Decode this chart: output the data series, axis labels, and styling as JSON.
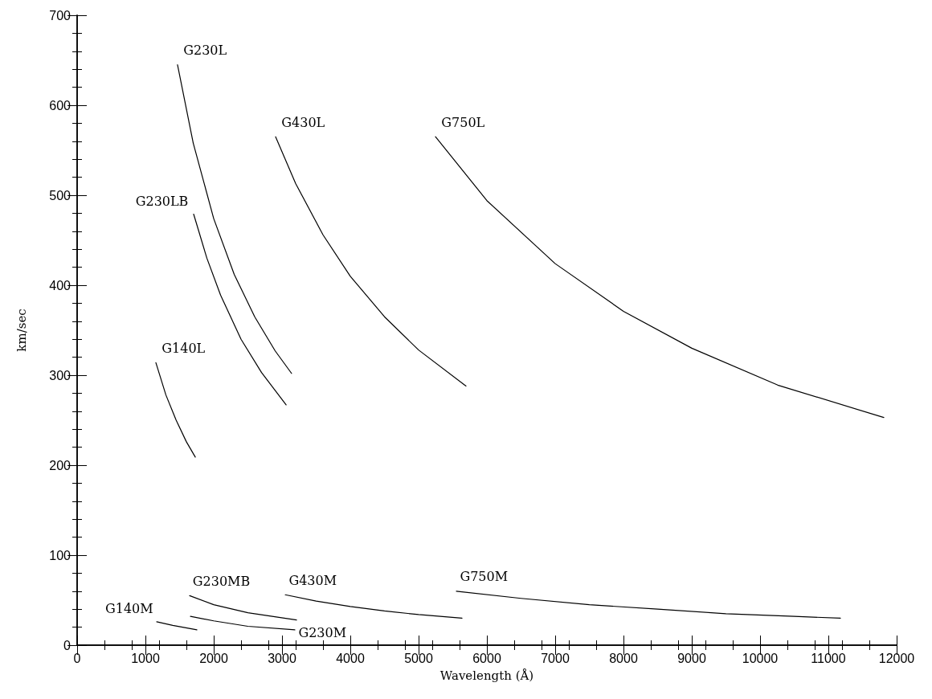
{
  "chart_data": {
    "type": "line",
    "xlabel": "Wavelength (Å)",
    "ylabel": "km/sec",
    "xlim": [
      0,
      12000
    ],
    "xticks": [
      0,
      1000,
      2000,
      3000,
      4000,
      5000,
      6000,
      7000,
      8000,
      9000,
      10000,
      11000,
      12000
    ],
    "ylim": [
      0,
      700
    ],
    "yticks": [
      0,
      100,
      200,
      300,
      400,
      500,
      600,
      700
    ],
    "grid": false,
    "legend": false,
    "marker": "none",
    "line_style": "solid",
    "series": [
      {
        "name": "G230L",
        "color": "#000000",
        "x": [
          1470,
          1700,
          2000,
          2300,
          2600,
          2900,
          3140
        ],
        "values": [
          645,
          558,
          474,
          412,
          365,
          327,
          302
        ]
      },
      {
        "name": "G230LB",
        "color": "#000000",
        "x": [
          1706,
          1900,
          2100,
          2400,
          2700,
          3060
        ],
        "values": [
          479,
          430,
          389,
          340,
          303,
          267
        ]
      },
      {
        "name": "G140L",
        "color": "#000000",
        "x": [
          1153,
          1300,
          1450,
          1600,
          1730
        ],
        "values": [
          314,
          278,
          250,
          226,
          209
        ]
      },
      {
        "name": "G430L",
        "color": "#000000",
        "x": [
          2906,
          3200,
          3600,
          4000,
          4500,
          5000,
          5694
        ],
        "values": [
          565,
          513,
          456,
          410,
          365,
          328,
          288
        ]
      },
      {
        "name": "G750L",
        "color": "#000000",
        "x": [
          5247,
          6000,
          7000,
          8000,
          9000,
          10259,
          11812
        ],
        "values": [
          565,
          494,
          424,
          371,
          330,
          289,
          253
        ]
      },
      {
        "name": "G140M",
        "color": "#000000",
        "x": [
          1165,
          1400,
          1753
        ],
        "values": [
          26,
          22,
          17
        ]
      },
      {
        "name": "G230MB",
        "color": "#000000",
        "x": [
          1647,
          2000,
          2500,
          3212
        ],
        "values": [
          55,
          45,
          36,
          28
        ]
      },
      {
        "name": "G230M",
        "color": "#000000",
        "x": [
          1659,
          2000,
          2500,
          3188
        ],
        "values": [
          32,
          27,
          21,
          17
        ]
      },
      {
        "name": "G430M",
        "color": "#000000",
        "x": [
          3047,
          3500,
          4000,
          4500,
          5000,
          5635
        ],
        "values": [
          56,
          49,
          43,
          38,
          34,
          30
        ]
      },
      {
        "name": "G750M",
        "color": "#000000",
        "x": [
          5553,
          6500,
          7500,
          8500,
          9500,
          10500,
          11176
        ],
        "values": [
          60,
          52,
          45,
          40,
          35,
          32,
          30
        ]
      }
    ]
  }
}
